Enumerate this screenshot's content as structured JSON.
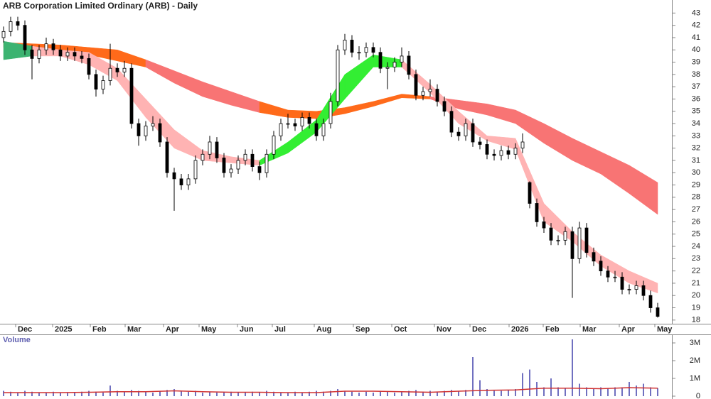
{
  "chart_data": [
    {
      "type": "candlestick",
      "title": "ARB Corporation Limited Ordinary (ARB) - Daily",
      "xlim": [
        -0.5,
        94
      ],
      "xticks": [
        {
          "value": 1.7,
          "label": "Dec"
        },
        {
          "value": 6.9,
          "label": "2025"
        },
        {
          "value": 12.2,
          "label": "Feb"
        },
        {
          "value": 17.1,
          "label": "Mar"
        },
        {
          "value": 22.5,
          "label": "Apr"
        },
        {
          "value": 27.5,
          "label": "May"
        },
        {
          "value": 32.9,
          "label": "Jun"
        },
        {
          "value": 37.8,
          "label": "Jul"
        },
        {
          "value": 43.7,
          "label": "Aug"
        },
        {
          "value": 49.2,
          "label": "Sep"
        },
        {
          "value": 54.6,
          "label": "Oct"
        },
        {
          "value": 60.6,
          "label": "Nov"
        },
        {
          "value": 65.6,
          "label": "Dec"
        },
        {
          "value": 71.1,
          "label": "2026"
        },
        {
          "value": 75.9,
          "label": "Feb"
        },
        {
          "value": 81.1,
          "label": "Mar"
        },
        {
          "value": 86.6,
          "label": "Apr"
        },
        {
          "value": 91.6,
          "label": "May"
        }
      ],
      "ylim": [
        17.7,
        43.6
      ],
      "yticks": [
        18,
        19,
        20,
        21,
        22,
        23,
        24,
        25,
        26,
        27,
        28,
        29,
        30,
        31,
        32,
        33,
        34,
        35,
        36,
        37,
        38,
        39,
        40,
        41,
        42,
        43
      ],
      "up_color": "#ffffff",
      "down_color": "#000000",
      "open": [
        41,
        41.5,
        42.3,
        42,
        40,
        39.3,
        40,
        40.5,
        40,
        39.5,
        39.8,
        39.5,
        39.3,
        38,
        36.8,
        37.5,
        38.5,
        38.2,
        38.5,
        34,
        33,
        33.8,
        34,
        32.5,
        30,
        29.5,
        29,
        29.5,
        31,
        31.5,
        32.5,
        31.2,
        30,
        30.3,
        31,
        31.5,
        30.5,
        30,
        31.5,
        33,
        34,
        34,
        33.8,
        34.5,
        34,
        33,
        34,
        35.8,
        40,
        40.8,
        39.8,
        39.8,
        40.2,
        39.8,
        38.5,
        38.6,
        39,
        39.5,
        38,
        36.3,
        36.6,
        36.8,
        35.8,
        35,
        33.3,
        33,
        34,
        32.5,
        32.3,
        31.5,
        31.4,
        31.8,
        31.5,
        32,
        29.2,
        27.5,
        26,
        25.5,
        24.5,
        24.5,
        25.2,
        23,
        25.5,
        23.5,
        22.8,
        22,
        21.5,
        21.5,
        20.5,
        20.5,
        20.8,
        20,
        19
      ],
      "high": [
        41.9,
        42.7,
        42.7,
        42.4,
        40.4,
        40.4,
        41,
        40.9,
        40.4,
        40.2,
        40.2,
        39.9,
        39.7,
        38.4,
        37.9,
        40.5,
        38.9,
        39.1,
        38.9,
        34.4,
        34.2,
        34.6,
        34.4,
        32.9,
        30.4,
        29.9,
        29.9,
        31.4,
        31.9,
        33,
        32.9,
        31.6,
        30.7,
        31.4,
        31.9,
        31.9,
        30.9,
        31.9,
        33.4,
        34.4,
        34.8,
        34.4,
        34.9,
        34.9,
        34.4,
        34.4,
        36.5,
        40.4,
        41.3,
        41.2,
        40.3,
        40.6,
        40.6,
        40.2,
        39,
        39.4,
        40.2,
        39.9,
        38.4,
        37,
        37.6,
        37.2,
        36.2,
        35.4,
        33.7,
        34.4,
        34.4,
        32.9,
        32.7,
        31.9,
        32.2,
        32.2,
        32.4,
        33.2,
        29.3,
        27.9,
        26.4,
        25.9,
        24.9,
        25.6,
        25.6,
        26,
        25.9,
        23.9,
        23.2,
        22.4,
        22,
        21.9,
        20.9,
        21.2,
        21.2,
        20.4,
        19.4
      ],
      "low": [
        40.6,
        41.1,
        41.6,
        39.6,
        37.6,
        38.9,
        39.6,
        39.6,
        39.1,
        39.1,
        39.1,
        38.9,
        37.6,
        36.2,
        36.4,
        37.1,
        37.8,
        37.8,
        33.6,
        32.2,
        32.6,
        33.4,
        32.1,
        29.6,
        26.9,
        28.6,
        28.6,
        29.1,
        30.6,
        31.1,
        30.8,
        29.6,
        29.6,
        29.9,
        30.6,
        30.1,
        29.4,
        29.6,
        31.1,
        32.6,
        33.6,
        33.4,
        33.4,
        33.6,
        32.6,
        32.6,
        33.6,
        35.4,
        39.6,
        39.4,
        39.2,
        39.4,
        39.4,
        38.1,
        36.8,
        38.2,
        38.6,
        37.6,
        35.9,
        35.9,
        36.2,
        35.4,
        34.6,
        32.9,
        32.6,
        32.6,
        32.1,
        31.9,
        31.1,
        31,
        31,
        31.1,
        31.1,
        31.6,
        27.1,
        25.6,
        25.1,
        24.1,
        24.1,
        24.1,
        19.8,
        22.6,
        23.1,
        22.4,
        21.6,
        21.1,
        21.1,
        20.1,
        20.1,
        20.1,
        19.6,
        18.6,
        18.2
      ],
      "close": [
        41.5,
        42.3,
        42,
        40,
        39.3,
        40,
        40.5,
        40,
        39.5,
        39.8,
        39.5,
        39.3,
        38,
        36.8,
        37.5,
        38.5,
        38.2,
        38.5,
        34,
        33,
        33.8,
        34,
        32.5,
        30,
        29.5,
        29,
        29.5,
        31,
        31.5,
        32.5,
        31.2,
        30,
        30.3,
        31,
        31.5,
        30.5,
        30,
        31.5,
        33,
        34,
        34,
        33.8,
        34.5,
        34,
        33,
        34,
        35.8,
        40,
        40.8,
        39.8,
        39.8,
        40.2,
        39.8,
        38.5,
        38.6,
        39,
        39.5,
        38,
        36.3,
        36.6,
        36.8,
        35.8,
        35,
        33.3,
        33,
        34,
        32.5,
        32.3,
        31.5,
        31.4,
        31.8,
        31.5,
        32,
        32.5,
        27.5,
        26,
        25.5,
        24.5,
        24.5,
        25.2,
        23,
        25.5,
        23.5,
        22.8,
        22,
        21.5,
        21.5,
        20.5,
        20.5,
        20.8,
        20,
        19,
        18.3
      ],
      "ribbon_x": [
        0,
        4,
        8,
        12,
        16,
        20,
        24,
        28,
        32,
        36,
        40,
        44,
        48,
        52,
        56,
        60,
        64,
        68,
        72,
        76,
        80,
        84,
        88,
        92
      ],
      "ribbons": [
        {
          "upper": [
            40.6,
            40.5,
            40.4,
            40.2,
            40,
            39.2,
            38.3,
            37.4,
            36.6,
            35.8,
            35.1,
            35,
            35.3,
            35.8,
            36.4,
            36.2,
            35.9,
            35.6,
            35.1,
            34,
            32.8,
            31.7,
            30.6,
            29.2
          ],
          "lower": [
            40.2,
            40,
            39.9,
            39.6,
            39.1,
            38.6,
            37.3,
            36.2,
            35.5,
            34.9,
            34.5,
            34.4,
            34.8,
            35.4,
            36.1,
            36,
            35.2,
            34.7,
            34,
            32.4,
            31,
            29.9,
            28.3,
            26.6
          ],
          "colors": [
            "#ff6a1a",
            "#ff6a1a",
            "#ff6a1a",
            "#ff6a1a",
            "#ff6a1a",
            "#f87474",
            "#f87474",
            "#f87474",
            "#f87474",
            "#ff6a1a",
            "#ff6a1a",
            "#ff6a1a",
            "#ff6a1a",
            "#ff6a1a",
            "#ff6a1a",
            "#f87474",
            "#f87474",
            "#f87474",
            "#f87474",
            "#f87474",
            "#f87474",
            "#f87474",
            "#f87474"
          ]
        },
        {
          "upper": [
            40.7,
            40.3,
            40,
            39.8,
            38.5,
            36,
            33.5,
            31.8,
            31.3,
            31,
            32.5,
            34.3,
            38,
            39.6,
            39.2,
            37.2,
            35,
            33,
            32.8,
            27.5,
            25.2,
            23.3,
            22,
            21
          ],
          "lower": [
            39.2,
            39.5,
            39.5,
            38.8,
            37.5,
            34.5,
            32,
            31,
            30.8,
            30.6,
            31.6,
            33.3,
            36,
            38.6,
            38.6,
            36.5,
            34,
            32.6,
            31.9,
            26,
            24.4,
            22.4,
            21,
            20.2
          ],
          "colors": [
            "#3cb371",
            "#ffb3b3",
            "#ffb3b3",
            "#ffb3b3",
            "#ffb3b3",
            "#ffb3b3",
            "#ffb3b3",
            "#ffb3b3",
            "#ffb3b3",
            "#33ee33",
            "#33ee33",
            "#33ee33",
            "#33ee33",
            "#33ee33",
            "#ffb3b3",
            "#ffb3b3",
            "#ffb3b3",
            "#ffb3b3",
            "#ffb3b3",
            "#ffb3b3",
            "#ffb3b3",
            "#ffb3b3",
            "#ffb3b3"
          ]
        }
      ]
    },
    {
      "type": "bar",
      "title": "Volume",
      "color": "#7070c0",
      "ma_color": "#d03030",
      "xlim": [
        -0.5,
        94
      ],
      "ylim": [
        0,
        3.4
      ],
      "yticks": [
        0,
        {
          "value": 1,
          "label": "1M"
        },
        {
          "value": 2,
          "label": "2M"
        },
        {
          "value": 3,
          "label": "3M"
        }
      ],
      "values": [
        0.3,
        0.25,
        0.2,
        0.3,
        0.25,
        0.2,
        0.2,
        0.25,
        0.2,
        0.2,
        0.2,
        0.25,
        0.3,
        0.25,
        0.2,
        0.6,
        0.3,
        0.25,
        0.35,
        0.3,
        0.25,
        0.2,
        0.3,
        0.35,
        0.4,
        0.3,
        0.25,
        0.3,
        0.2,
        0.25,
        0.2,
        0.2,
        0.25,
        0.2,
        0.2,
        0.25,
        0.2,
        0.3,
        0.25,
        0.2,
        0.2,
        0.25,
        0.2,
        0.25,
        0.3,
        0.25,
        0.3,
        0.4,
        0.3,
        0.25,
        0.2,
        0.25,
        0.2,
        0.3,
        0.25,
        0.2,
        0.25,
        0.3,
        0.35,
        0.25,
        0.3,
        0.25,
        0.3,
        0.35,
        0.3,
        0.35,
        2.2,
        0.9,
        0.4,
        0.3,
        0.3,
        0.35,
        0.4,
        1.3,
        1.5,
        0.8,
        0.5,
        1.0,
        0.5,
        0.45,
        3.2,
        0.7,
        0.5,
        0.4,
        0.5,
        0.45,
        0.5,
        0.5,
        0.8,
        0.6,
        0.7,
        0.5,
        0.45
      ],
      "ma_x": [
        0,
        4,
        8,
        12,
        16,
        20,
        24,
        28,
        32,
        36,
        40,
        44,
        48,
        52,
        56,
        60,
        64,
        68,
        72,
        76,
        80,
        84,
        88,
        92
      ],
      "ma": [
        0.2,
        0.2,
        0.2,
        0.22,
        0.25,
        0.25,
        0.3,
        0.25,
        0.22,
        0.22,
        0.2,
        0.2,
        0.28,
        0.28,
        0.25,
        0.22,
        0.28,
        0.33,
        0.35,
        0.45,
        0.45,
        0.42,
        0.48,
        0.45
      ]
    }
  ]
}
